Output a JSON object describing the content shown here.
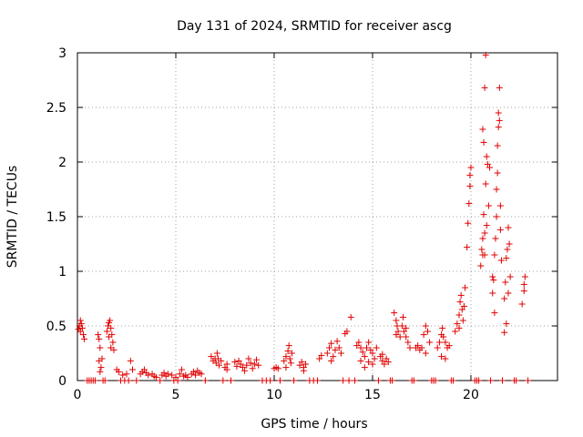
{
  "chart_data": {
    "type": "scatter",
    "title": "Day 131 of 2024, SRMTID for receiver ascg",
    "xlabel": "GPS time / hours",
    "ylabel": "SRMTID / TECUs",
    "xlim": [
      0,
      24.4
    ],
    "ylim": [
      0,
      3
    ],
    "x_ticks": [
      0,
      5,
      10,
      15,
      20
    ],
    "x_tick_labels": [
      "0",
      "5",
      "10",
      "15",
      "20"
    ],
    "y_ticks": [
      0,
      0.5,
      1,
      1.5,
      2,
      2.5,
      3
    ],
    "y_tick_labels": [
      "0",
      "0.5",
      "1",
      "1.5",
      "2",
      "2.5",
      "3"
    ],
    "grid": true,
    "marker": "+",
    "series": [
      {
        "name": "SRMTID",
        "color": "#e00000",
        "points": [
          [
            0.05,
            0.47
          ],
          [
            0.1,
            0.5
          ],
          [
            0.15,
            0.45
          ],
          [
            0.2,
            0.52
          ],
          [
            0.25,
            0.48
          ],
          [
            0.3,
            0.42
          ],
          [
            0.35,
            0.38
          ],
          [
            0.15,
            0.55
          ],
          [
            1.05,
            0.42
          ],
          [
            1.1,
            0.38
          ],
          [
            1.15,
            0.3
          ],
          [
            1.1,
            0.18
          ],
          [
            1.2,
            0.12
          ],
          [
            1.15,
            0.08
          ],
          [
            1.25,
            0.2
          ],
          [
            1.5,
            0.45
          ],
          [
            1.55,
            0.5
          ],
          [
            1.6,
            0.53
          ],
          [
            1.65,
            0.55
          ],
          [
            1.7,
            0.48
          ],
          [
            1.75,
            0.42
          ],
          [
            1.8,
            0.35
          ],
          [
            1.85,
            0.28
          ],
          [
            1.6,
            0.4
          ],
          [
            1.7,
            0.3
          ],
          [
            2.0,
            0.1
          ],
          [
            2.1,
            0.08
          ],
          [
            2.3,
            0.05
          ],
          [
            2.5,
            0.06
          ],
          [
            2.7,
            0.18
          ],
          [
            2.8,
            0.1
          ],
          [
            3.2,
            0.06
          ],
          [
            3.3,
            0.08
          ],
          [
            3.4,
            0.1
          ],
          [
            3.5,
            0.07
          ],
          [
            3.6,
            0.05
          ],
          [
            3.8,
            0.06
          ],
          [
            3.9,
            0.04
          ],
          [
            4.0,
            0.03
          ],
          [
            4.3,
            0.05
          ],
          [
            4.4,
            0.07
          ],
          [
            4.5,
            0.04
          ],
          [
            4.6,
            0.06
          ],
          [
            4.8,
            0.05
          ],
          [
            5.0,
            0.03
          ],
          [
            5.2,
            0.06
          ],
          [
            5.3,
            0.1
          ],
          [
            5.4,
            0.04
          ],
          [
            5.5,
            0.05
          ],
          [
            5.6,
            0.03
          ],
          [
            5.8,
            0.06
          ],
          [
            5.9,
            0.08
          ],
          [
            6.0,
            0.05
          ],
          [
            6.1,
            0.09
          ],
          [
            6.2,
            0.07
          ],
          [
            6.3,
            0.06
          ],
          [
            6.8,
            0.22
          ],
          [
            6.9,
            0.18
          ],
          [
            7.0,
            0.2
          ],
          [
            7.05,
            0.16
          ],
          [
            7.1,
            0.25
          ],
          [
            7.15,
            0.2
          ],
          [
            7.2,
            0.14
          ],
          [
            7.3,
            0.18
          ],
          [
            7.5,
            0.12
          ],
          [
            7.6,
            0.15
          ],
          [
            7.6,
            0.1
          ],
          [
            8.0,
            0.17
          ],
          [
            8.1,
            0.13
          ],
          [
            8.2,
            0.18
          ],
          [
            8.3,
            0.15
          ],
          [
            8.4,
            0.12
          ],
          [
            8.5,
            0.09
          ],
          [
            8.6,
            0.14
          ],
          [
            8.7,
            0.2
          ],
          [
            8.8,
            0.16
          ],
          [
            8.9,
            0.11
          ],
          [
            9.0,
            0.15
          ],
          [
            9.1,
            0.19
          ],
          [
            9.2,
            0.14
          ],
          [
            10.0,
            0.11
          ],
          [
            10.1,
            0.12
          ],
          [
            10.2,
            0.11
          ],
          [
            10.5,
            0.18
          ],
          [
            10.6,
            0.22
          ],
          [
            10.7,
            0.27
          ],
          [
            10.75,
            0.32
          ],
          [
            10.8,
            0.2
          ],
          [
            10.85,
            0.16
          ],
          [
            10.9,
            0.25
          ],
          [
            10.6,
            0.12
          ],
          [
            11.3,
            0.14
          ],
          [
            11.4,
            0.17
          ],
          [
            11.5,
            0.12
          ],
          [
            11.6,
            0.15
          ],
          [
            11.5,
            0.09
          ],
          [
            12.3,
            0.2
          ],
          [
            12.4,
            0.23
          ],
          [
            12.7,
            0.25
          ],
          [
            12.8,
            0.3
          ],
          [
            12.9,
            0.34
          ],
          [
            13.0,
            0.22
          ],
          [
            13.1,
            0.28
          ],
          [
            13.2,
            0.36
          ],
          [
            13.3,
            0.3
          ],
          [
            13.4,
            0.25
          ],
          [
            12.9,
            0.18
          ],
          [
            13.6,
            0.43
          ],
          [
            13.7,
            0.45
          ],
          [
            13.9,
            0.58
          ],
          [
            14.2,
            0.32
          ],
          [
            14.3,
            0.35
          ],
          [
            14.4,
            0.3
          ],
          [
            14.5,
            0.26
          ],
          [
            14.6,
            0.22
          ],
          [
            14.7,
            0.3
          ],
          [
            14.8,
            0.35
          ],
          [
            14.9,
            0.28
          ],
          [
            15.0,
            0.25
          ],
          [
            15.1,
            0.2
          ],
          [
            15.2,
            0.3
          ],
          [
            14.4,
            0.18
          ],
          [
            14.6,
            0.12
          ],
          [
            14.8,
            0.17
          ],
          [
            15.0,
            0.15
          ],
          [
            15.4,
            0.22
          ],
          [
            15.5,
            0.18
          ],
          [
            15.6,
            0.15
          ],
          [
            15.7,
            0.2
          ],
          [
            15.8,
            0.17
          ],
          [
            15.5,
            0.24
          ],
          [
            16.1,
            0.62
          ],
          [
            16.2,
            0.55
          ],
          [
            16.25,
            0.5
          ],
          [
            16.3,
            0.45
          ],
          [
            16.4,
            0.4
          ],
          [
            16.5,
            0.5
          ],
          [
            16.55,
            0.58
          ],
          [
            16.6,
            0.45
          ],
          [
            16.7,
            0.4
          ],
          [
            16.8,
            0.35
          ],
          [
            16.9,
            0.3
          ],
          [
            16.2,
            0.42
          ],
          [
            16.7,
            0.48
          ],
          [
            17.2,
            0.3
          ],
          [
            17.3,
            0.32
          ],
          [
            17.4,
            0.28
          ],
          [
            17.5,
            0.3
          ],
          [
            17.6,
            0.42
          ],
          [
            17.7,
            0.5
          ],
          [
            17.8,
            0.45
          ],
          [
            17.9,
            0.35
          ],
          [
            17.7,
            0.25
          ],
          [
            18.3,
            0.3
          ],
          [
            18.4,
            0.35
          ],
          [
            18.5,
            0.42
          ],
          [
            18.55,
            0.48
          ],
          [
            18.6,
            0.4
          ],
          [
            18.7,
            0.35
          ],
          [
            18.8,
            0.3
          ],
          [
            18.9,
            0.32
          ],
          [
            18.5,
            0.22
          ],
          [
            18.7,
            0.2
          ],
          [
            19.2,
            0.45
          ],
          [
            19.3,
            0.52
          ],
          [
            19.4,
            0.6
          ],
          [
            19.45,
            0.72
          ],
          [
            19.5,
            0.78
          ],
          [
            19.55,
            0.65
          ],
          [
            19.6,
            0.55
          ],
          [
            19.65,
            0.68
          ],
          [
            19.7,
            0.85
          ],
          [
            19.4,
            0.48
          ],
          [
            19.8,
            1.22
          ],
          [
            19.85,
            1.44
          ],
          [
            19.9,
            1.62
          ],
          [
            19.95,
            1.78
          ],
          [
            20.0,
            1.95
          ],
          [
            19.95,
            1.88
          ],
          [
            20.5,
            1.05
          ],
          [
            20.55,
            1.2
          ],
          [
            20.6,
            1.3
          ],
          [
            20.65,
            1.52
          ],
          [
            20.7,
            1.35
          ],
          [
            20.75,
            1.8
          ],
          [
            20.8,
            2.05
          ],
          [
            20.85,
            1.98
          ],
          [
            20.9,
            1.6
          ],
          [
            20.95,
            1.95
          ],
          [
            20.6,
            2.3
          ],
          [
            20.65,
            2.18
          ],
          [
            20.7,
            2.68
          ],
          [
            20.75,
            2.98
          ],
          [
            20.8,
            1.42
          ],
          [
            20.6,
            1.15
          ],
          [
            20.7,
            1.15
          ],
          [
            21.1,
            0.8
          ],
          [
            21.15,
            0.92
          ],
          [
            21.2,
            1.15
          ],
          [
            21.25,
            1.3
          ],
          [
            21.3,
            1.5
          ],
          [
            21.3,
            1.75
          ],
          [
            21.35,
            1.9
          ],
          [
            21.35,
            2.15
          ],
          [
            21.4,
            2.32
          ],
          [
            21.4,
            2.45
          ],
          [
            21.45,
            2.38
          ],
          [
            21.45,
            2.68
          ],
          [
            21.5,
            1.6
          ],
          [
            21.5,
            1.38
          ],
          [
            21.55,
            1.1
          ],
          [
            21.2,
            0.62
          ],
          [
            21.1,
            0.95
          ],
          [
            21.7,
            0.75
          ],
          [
            21.75,
            0.9
          ],
          [
            21.8,
            1.12
          ],
          [
            21.85,
            1.2
          ],
          [
            21.9,
            1.4
          ],
          [
            21.95,
            1.25
          ],
          [
            22.0,
            0.95
          ],
          [
            21.9,
            0.8
          ],
          [
            21.8,
            0.52
          ],
          [
            21.7,
            0.44
          ],
          [
            22.6,
            0.7
          ],
          [
            22.7,
            0.88
          ],
          [
            22.75,
            0.95
          ],
          [
            22.7,
            0.82
          ]
        ],
        "zero_points_x": [
          0.5,
          0.6,
          0.7,
          0.8,
          0.9,
          1.3,
          1.4,
          2.2,
          2.4,
          2.6,
          3.0,
          4.2,
          4.9,
          5.1,
          6.5,
          7.4,
          7.8,
          9.4,
          9.6,
          9.8,
          10.3,
          11.0,
          11.8,
          12.0,
          12.2,
          13.5,
          13.8,
          14.1,
          15.3,
          15.9,
          16.0,
          17.0,
          17.1,
          18.0,
          18.1,
          18.2,
          19.0,
          19.1,
          20.2,
          20.3,
          20.4,
          21.0,
          21.6,
          22.2,
          22.3,
          22.9
        ]
      }
    ]
  }
}
